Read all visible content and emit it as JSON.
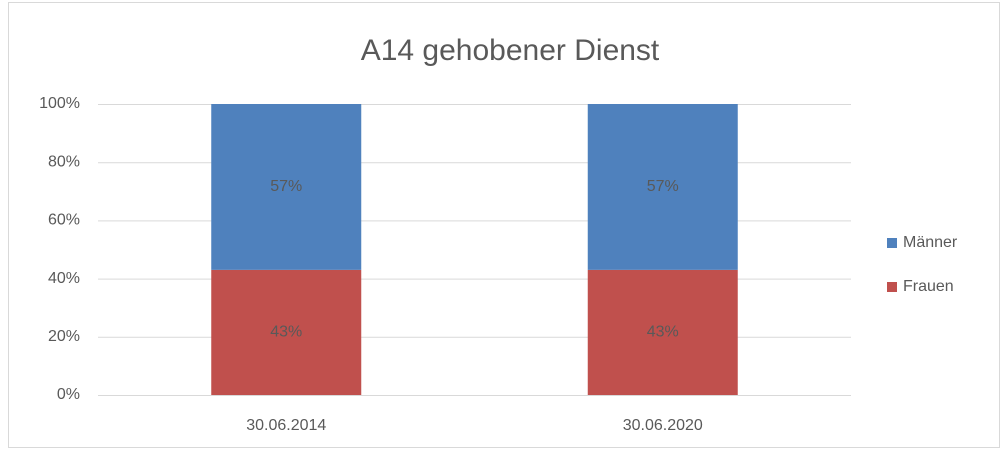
{
  "chart_data": {
    "type": "stacked_bar",
    "title": "A14 gehobener Dienst",
    "categories": [
      "30.06.2014",
      "30.06.2020"
    ],
    "series": [
      {
        "name": "Frauen",
        "color": "#c0504d",
        "values": [
          43,
          43
        ],
        "value_labels": [
          "43%",
          "43%"
        ]
      },
      {
        "name": "Männer",
        "color": "#4f81bd",
        "values": [
          57,
          57
        ],
        "value_labels": [
          "57%",
          "57%"
        ]
      }
    ],
    "ylim": [
      0,
      100
    ],
    "yticks": [
      {
        "value": 0,
        "label": "0%"
      },
      {
        "value": 20,
        "label": "20%"
      },
      {
        "value": 40,
        "label": "40%"
      },
      {
        "value": 60,
        "label": "60%"
      },
      {
        "value": 80,
        "label": "80%"
      },
      {
        "value": 100,
        "label": "100%"
      }
    ],
    "grid": true,
    "legend": "right"
  }
}
